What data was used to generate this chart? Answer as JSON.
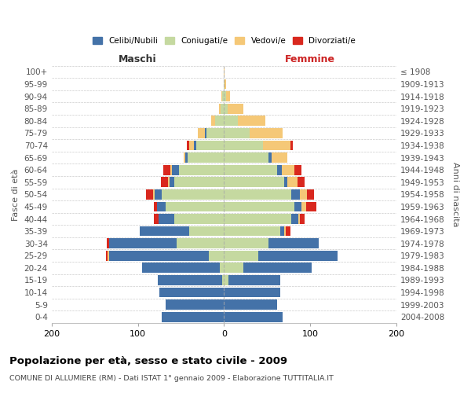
{
  "age_groups": [
    "0-4",
    "5-9",
    "10-14",
    "15-19",
    "20-24",
    "25-29",
    "30-34",
    "35-39",
    "40-44",
    "45-49",
    "50-54",
    "55-59",
    "60-64",
    "65-69",
    "70-74",
    "75-79",
    "80-84",
    "85-89",
    "90-94",
    "95-99",
    "100+"
  ],
  "birth_years": [
    "2004-2008",
    "1999-2003",
    "1994-1998",
    "1989-1993",
    "1984-1988",
    "1979-1983",
    "1974-1978",
    "1969-1973",
    "1964-1968",
    "1959-1963",
    "1954-1958",
    "1949-1953",
    "1944-1948",
    "1939-1943",
    "1934-1938",
    "1929-1933",
    "1924-1928",
    "1919-1923",
    "1914-1918",
    "1909-1913",
    "≤ 1908"
  ],
  "colors": {
    "celibi": "#4472a8",
    "coniugati": "#c5d9a0",
    "vedovi": "#f5c877",
    "divorziati": "#d9281e"
  },
  "maschi": {
    "coniugati": [
      0,
      0,
      0,
      2,
      5,
      18,
      55,
      40,
      58,
      68,
      72,
      58,
      52,
      42,
      32,
      20,
      10,
      4,
      2,
      0,
      0
    ],
    "celibi": [
      72,
      68,
      75,
      75,
      90,
      115,
      78,
      58,
      18,
      10,
      8,
      5,
      8,
      3,
      3,
      2,
      0,
      0,
      0,
      0,
      0
    ],
    "vedovi": [
      0,
      0,
      0,
      0,
      0,
      2,
      0,
      0,
      0,
      0,
      2,
      2,
      2,
      2,
      5,
      8,
      5,
      2,
      1,
      0,
      0
    ],
    "divorziati": [
      0,
      0,
      0,
      0,
      0,
      2,
      3,
      0,
      5,
      3,
      8,
      8,
      8,
      0,
      3,
      0,
      0,
      0,
      0,
      0,
      0
    ]
  },
  "femmine": {
    "coniugati": [
      0,
      0,
      0,
      5,
      22,
      40,
      52,
      65,
      78,
      82,
      78,
      70,
      62,
      52,
      45,
      30,
      16,
      4,
      2,
      1,
      0
    ],
    "celibi": [
      68,
      62,
      65,
      60,
      80,
      92,
      58,
      5,
      8,
      8,
      10,
      3,
      5,
      3,
      0,
      0,
      0,
      0,
      0,
      0,
      0
    ],
    "vedovi": [
      0,
      0,
      0,
      0,
      0,
      0,
      0,
      2,
      2,
      5,
      8,
      12,
      15,
      18,
      32,
      38,
      32,
      18,
      5,
      1,
      1
    ],
    "divorziati": [
      0,
      0,
      0,
      0,
      0,
      0,
      0,
      5,
      5,
      12,
      8,
      8,
      8,
      0,
      3,
      0,
      0,
      0,
      0,
      0,
      0
    ]
  },
  "title": "Popolazione per età, sesso e stato civile - 2009",
  "subtitle": "COMUNE DI ALLUMIERE (RM) - Dati ISTAT 1° gennaio 2009 - Elaborazione TUTTITALIA.IT",
  "xlabel_left": "Maschi",
  "xlabel_right": "Femmine",
  "ylabel_left": "Fasce di età",
  "ylabel_right": "Anni di nascita",
  "xlim": 200,
  "legend_labels": [
    "Celibi/Nubili",
    "Coniugati/e",
    "Vedovi/e",
    "Divorziati/e"
  ]
}
